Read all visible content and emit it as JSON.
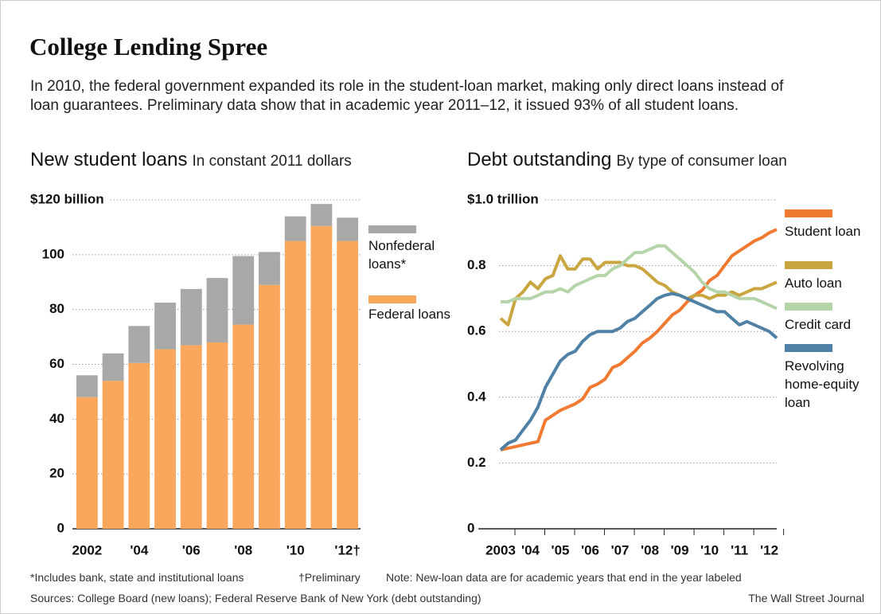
{
  "title": "College Lending Spree",
  "subtitle": "In 2010, the federal government expanded its role in the student-loan market, making only direct loans instead of loan guarantees. Preliminary data show that in academic year 2011–12, it issued 93% of all student loans.",
  "footnotes": [
    "*Includes bank, state and institutional loans",
    "†Preliminary",
    "Note: New-loan data are for academic years that end in the year labeled"
  ],
  "source": "Sources: College Board (new loans); Federal Reserve Bank of New York (debt outstanding)",
  "credit": "The Wall Street Journal",
  "chart_data": [
    {
      "type": "bar",
      "stacked": true,
      "title": "New student loans",
      "subtitle": "In constant 2011 dollars",
      "categories": [
        "2002",
        null,
        "'04",
        null,
        "'06",
        null,
        "'08",
        null,
        "'10",
        null,
        "'12†"
      ],
      "series": [
        {
          "name": "Federal loans",
          "color": "#f9a75d",
          "values": [
            48,
            54,
            60.5,
            65.5,
            67,
            68,
            74.5,
            89,
            105,
            110.5,
            105
          ]
        },
        {
          "name": "Nonfederal loans*",
          "color": "#a8a8a8",
          "values": [
            8,
            10,
            13.5,
            17,
            20.5,
            23.5,
            25,
            12,
            9,
            8,
            8.5
          ]
        }
      ],
      "ylim": [
        0,
        120
      ],
      "yticks": [
        0,
        20,
        40,
        60,
        80,
        100,
        {
          "value": 120,
          "label": "$120 billion"
        }
      ],
      "grid": true
    },
    {
      "type": "line",
      "title": "Debt outstanding",
      "subtitle": "By type of consumer loan",
      "x": [
        2003,
        2003.25,
        2003.5,
        2003.75,
        2004,
        2004.25,
        2004.5,
        2004.75,
        2005,
        2005.25,
        2005.5,
        2005.75,
        2006,
        2006.25,
        2006.5,
        2006.75,
        2007,
        2007.25,
        2007.5,
        2007.75,
        2008,
        2008.25,
        2008.5,
        2008.75,
        2009,
        2009.25,
        2009.5,
        2009.75,
        2010,
        2010.25,
        2010.5,
        2010.75,
        2011,
        2011.25,
        2011.5,
        2011.75,
        2012,
        2012.25
      ],
      "series": [
        {
          "name": "Student loan",
          "color": "#f07a32",
          "values": [
            0.24,
            0.245,
            0.25,
            0.255,
            0.26,
            0.265,
            0.33,
            0.345,
            0.36,
            0.37,
            0.38,
            0.395,
            0.43,
            0.44,
            0.455,
            0.49,
            0.5,
            0.52,
            0.54,
            0.565,
            0.58,
            0.6,
            0.625,
            0.65,
            0.665,
            0.69,
            0.71,
            0.725,
            0.755,
            0.77,
            0.8,
            0.83,
            0.845,
            0.86,
            0.875,
            0.885,
            0.9,
            0.91
          ]
        },
        {
          "name": "Auto loan",
          "color": "#c9a640",
          "values": [
            0.64,
            0.62,
            0.7,
            0.72,
            0.75,
            0.73,
            0.76,
            0.77,
            0.83,
            0.79,
            0.79,
            0.82,
            0.82,
            0.79,
            0.81,
            0.81,
            0.81,
            0.8,
            0.8,
            0.79,
            0.77,
            0.75,
            0.74,
            0.72,
            0.71,
            0.7,
            0.71,
            0.71,
            0.7,
            0.71,
            0.71,
            0.72,
            0.71,
            0.72,
            0.73,
            0.73,
            0.74,
            0.75
          ]
        },
        {
          "name": "Credit card",
          "color": "#b6d4aa",
          "values": [
            0.69,
            0.69,
            0.7,
            0.7,
            0.7,
            0.71,
            0.72,
            0.72,
            0.73,
            0.72,
            0.74,
            0.75,
            0.76,
            0.77,
            0.77,
            0.79,
            0.8,
            0.82,
            0.84,
            0.84,
            0.85,
            0.86,
            0.86,
            0.84,
            0.82,
            0.8,
            0.78,
            0.75,
            0.73,
            0.72,
            0.72,
            0.71,
            0.7,
            0.7,
            0.7,
            0.69,
            0.68,
            0.67
          ]
        },
        {
          "name": "Revolving home-equity loan",
          "color": "#4f80a6",
          "values": [
            0.24,
            0.26,
            0.27,
            0.3,
            0.33,
            0.37,
            0.43,
            0.47,
            0.51,
            0.53,
            0.54,
            0.57,
            0.59,
            0.6,
            0.6,
            0.6,
            0.61,
            0.63,
            0.64,
            0.66,
            0.68,
            0.7,
            0.71,
            0.715,
            0.71,
            0.7,
            0.69,
            0.68,
            0.67,
            0.66,
            0.66,
            0.64,
            0.62,
            0.63,
            0.62,
            0.61,
            0.6,
            0.58
          ]
        }
      ],
      "xlim": [
        2003,
        2012.25
      ],
      "xticks": [
        {
          "value": 2003,
          "label": "2003"
        },
        {
          "value": 2004,
          "label": "'04"
        },
        {
          "value": 2005,
          "label": "'05"
        },
        {
          "value": 2006,
          "label": "'06"
        },
        {
          "value": 2007,
          "label": "'07"
        },
        {
          "value": 2008,
          "label": "'08"
        },
        {
          "value": 2009,
          "label": "'09"
        },
        {
          "value": 2010,
          "label": "'10"
        },
        {
          "value": 2011,
          "label": "'11"
        },
        {
          "value": 2012,
          "label": "'12"
        }
      ],
      "ylim": [
        0,
        1
      ],
      "yticks": [
        0,
        0.2,
        0.4,
        0.6,
        0.8,
        {
          "value": 1,
          "label": "$1.0 trillion"
        }
      ],
      "grid": true
    }
  ]
}
